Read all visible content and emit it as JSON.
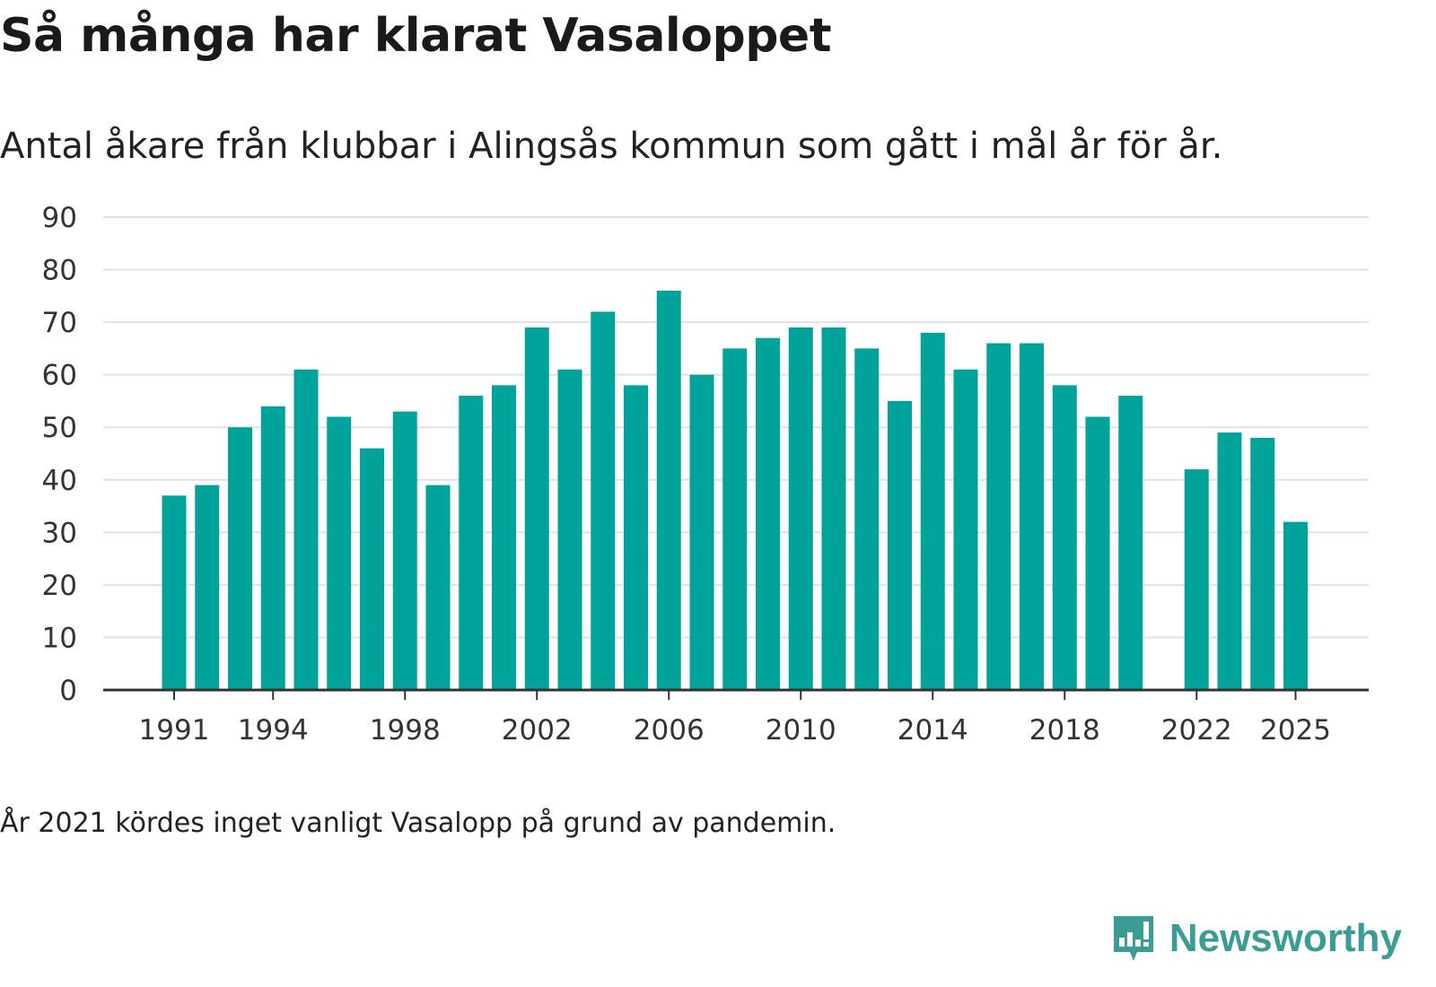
{
  "title": "Så många har klarat Vasaloppet",
  "subtitle": "Antal åkare från klubbar i Alingsås kommun som gått i mål år för år.",
  "footnote": "År 2021 kördes inget vanligt Vasalopp på grund av pandemin.",
  "brand": {
    "name": "Newsworthy",
    "icon": "bar-chart-badge-icon",
    "color": "#3b9c93"
  },
  "colors": {
    "bar": "#00a39a",
    "grid": "#e2e2e2",
    "axis": "#333333"
  },
  "chart_data": {
    "type": "bar",
    "title": "Så många har klarat Vasaloppet",
    "xlabel": "",
    "ylabel": "",
    "ylim": [
      0,
      90
    ],
    "yticks": [
      0,
      10,
      20,
      30,
      40,
      50,
      60,
      70,
      80,
      90
    ],
    "xticks": [
      "1991",
      "1994",
      "1998",
      "2002",
      "2006",
      "2010",
      "2014",
      "2018",
      "2022",
      "2025"
    ],
    "grid": true,
    "categories": [
      "1991",
      "1992",
      "1993",
      "1994",
      "1995",
      "1996",
      "1997",
      "1998",
      "1999",
      "2000",
      "2001",
      "2002",
      "2003",
      "2004",
      "2005",
      "2006",
      "2007",
      "2008",
      "2009",
      "2010",
      "2011",
      "2012",
      "2013",
      "2014",
      "2015",
      "2016",
      "2017",
      "2018",
      "2019",
      "2020",
      "2021",
      "2022",
      "2023",
      "2024",
      "2025"
    ],
    "values": [
      37,
      39,
      50,
      54,
      61,
      52,
      46,
      53,
      39,
      56,
      58,
      69,
      61,
      72,
      58,
      76,
      60,
      65,
      67,
      69,
      69,
      65,
      55,
      68,
      61,
      66,
      66,
      58,
      52,
      56,
      null,
      42,
      49,
      48,
      32
    ]
  }
}
